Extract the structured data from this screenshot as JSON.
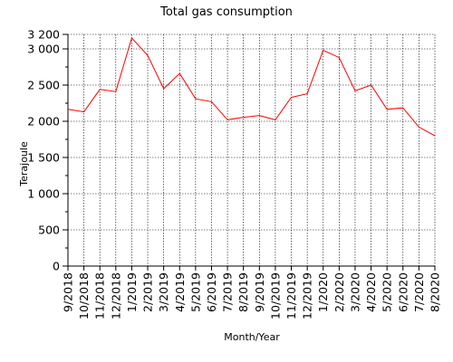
{
  "chart_data": {
    "type": "line",
    "title": "Total gas consumption",
    "xlabel": "Month/Year",
    "ylabel": "Terajoule",
    "ylim": [
      0,
      3200
    ],
    "yticks": [
      0,
      500,
      1000,
      1500,
      2000,
      2500,
      3000,
      3200
    ],
    "ytick_labels": [
      "0",
      "500",
      "1 000",
      "1 500",
      "2 000",
      "2 500",
      "3 000",
      "3 200"
    ],
    "grid": true,
    "line_color": "#ff0000",
    "categories": [
      "9/2018",
      "10/2018",
      "11/2018",
      "12/2018",
      "1/2019",
      "2/2019",
      "3/2019",
      "4/2019",
      "5/2019",
      "6/2019",
      "7/2019",
      "8/2019",
      "9/2019",
      "10/2019",
      "11/2019",
      "12/2019",
      "1/2020",
      "2/2020",
      "3/2020",
      "4/2020",
      "5/2020",
      "6/2020",
      "7/2020",
      "8/2020"
    ],
    "values": [
      2165,
      2130,
      2440,
      2410,
      3150,
      2910,
      2450,
      2660,
      2310,
      2270,
      2020,
      2055,
      2080,
      2020,
      2330,
      2380,
      2980,
      2880,
      2420,
      2500,
      2165,
      2185,
      1920,
      1800
    ]
  }
}
